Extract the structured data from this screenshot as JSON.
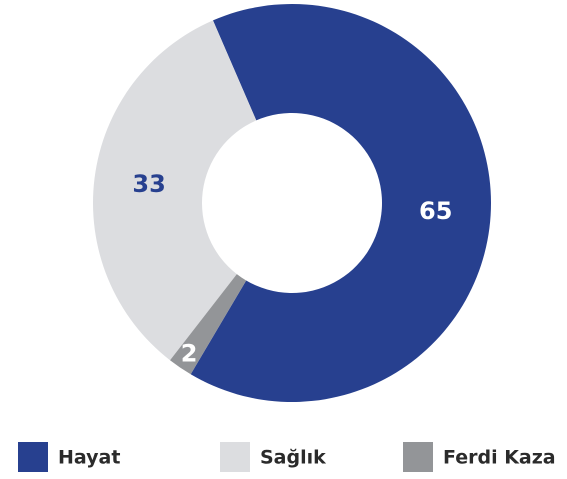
{
  "chart_data": {
    "type": "donut",
    "categories": [
      "Hayat",
      "Sağlık",
      "Ferdi Kaza"
    ],
    "values": [
      65,
      33,
      2
    ],
    "colors": [
      "#27408f",
      "#dcdde0",
      "#939598"
    ],
    "legend": "bottom"
  }
}
